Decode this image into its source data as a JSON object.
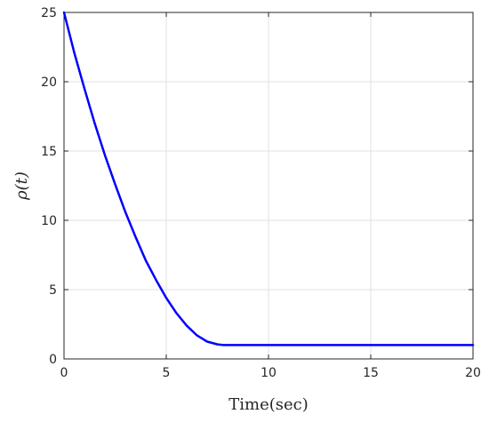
{
  "chart_data": {
    "type": "line",
    "title": "",
    "xlabel": "Time(sec)",
    "ylabel": "ρ(t)",
    "xlim": [
      0,
      20
    ],
    "ylim": [
      0,
      25
    ],
    "xticks": [
      "0",
      "5",
      "10",
      "15",
      "20"
    ],
    "yticks": [
      "0",
      "5",
      "10",
      "15",
      "20",
      "25"
    ],
    "grid": true,
    "legend": "none",
    "series": [
      {
        "color": "#0000ff",
        "x": [
          0,
          0.5,
          1,
          1.5,
          2,
          2.5,
          3,
          3.5,
          4,
          4.5,
          5,
          5.5,
          6,
          6.5,
          7,
          7.5,
          7.8,
          8,
          9,
          10,
          11,
          12,
          13,
          14,
          15,
          16,
          17,
          18,
          19,
          20
        ],
        "y": [
          25,
          22.1,
          19.5,
          17.0,
          14.7,
          12.6,
          10.6,
          8.8,
          7.1,
          5.7,
          4.4,
          3.3,
          2.4,
          1.7,
          1.25,
          1.05,
          1.0,
          1.0,
          1.0,
          1.0,
          1.0,
          1.0,
          1.0,
          1.0,
          1.0,
          1.0,
          1.0,
          1.0,
          1.0,
          1.0
        ]
      }
    ]
  }
}
